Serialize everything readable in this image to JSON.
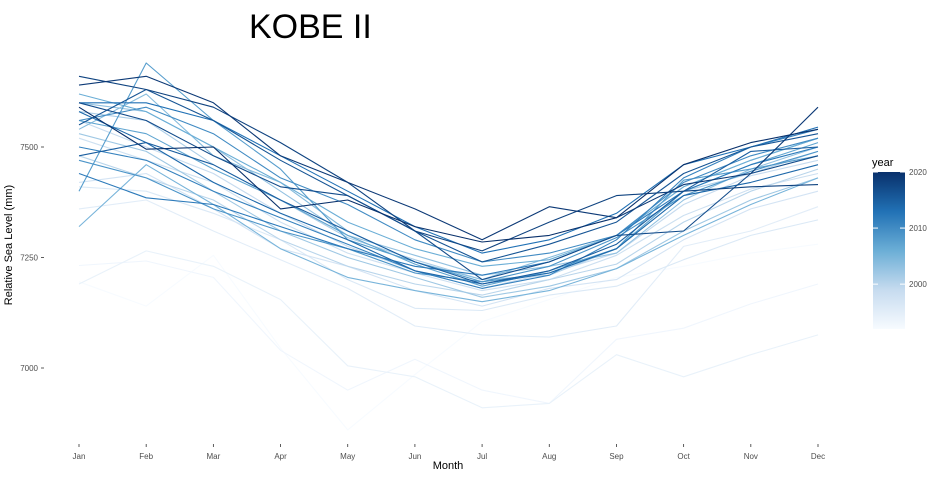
{
  "chart_data": {
    "type": "line",
    "title": "KOBE II",
    "xlabel": "Month",
    "ylabel": "Relative Sea Level (mm)",
    "categories": [
      "Jan",
      "Feb",
      "Mar",
      "Apr",
      "May",
      "Jun",
      "Jul",
      "Aug",
      "Sep",
      "Oct",
      "Nov",
      "Dec"
    ],
    "ylim": [
      6825,
      7700
    ],
    "yticks": [
      7000,
      7250,
      7500
    ],
    "grid": false,
    "legend": {
      "title": "year",
      "placement": "right",
      "type": "colorbar",
      "range": [
        1992,
        2020
      ],
      "ticks": [
        2000,
        2010,
        2020
      ],
      "color_low": "#f7fbff",
      "color_high": "#08306b"
    },
    "series": [
      {
        "year": 1992,
        "values": [
          7195,
          7140,
          7255,
          7045,
          6860,
          6985,
          7105,
          7155,
          7205,
          7230,
          7260,
          7280
        ]
      },
      {
        "year": 1993,
        "values": [
          7232,
          7242,
          7205,
          7040,
          6950,
          7020,
          6950,
          6920,
          7065,
          7090,
          7145,
          7190
        ]
      },
      {
        "year": 1994,
        "values": [
          7190,
          7265,
          7230,
          7155,
          7005,
          6980,
          6910,
          6920,
          7030,
          6980,
          7030,
          7075
        ]
      },
      {
        "year": 1995,
        "values": [
          7360,
          7380,
          7310,
          7245,
          7180,
          7095,
          7075,
          7070,
          7095,
          7275,
          7310,
          7365
        ]
      },
      {
        "year": 1996,
        "values": [
          7410,
          7400,
          7350,
          7290,
          7200,
          7135,
          7130,
          7165,
          7185,
          7245,
          7300,
          7335
        ]
      },
      {
        "year": 1997,
        "values": [
          7420,
          7440,
          7360,
          7270,
          7230,
          7175,
          7140,
          7180,
          7200,
          7290,
          7360,
          7400
        ]
      },
      {
        "year": 1998,
        "values": [
          7520,
          7470,
          7420,
          7330,
          7260,
          7215,
          7175,
          7200,
          7255,
          7345,
          7405,
          7440
        ]
      },
      {
        "year": 1999,
        "values": [
          7560,
          7500,
          7440,
          7350,
          7275,
          7220,
          7180,
          7215,
          7260,
          7370,
          7435,
          7470
        ]
      },
      {
        "year": 2000,
        "values": [
          7480,
          7430,
          7380,
          7290,
          7230,
          7190,
          7165,
          7200,
          7235,
          7330,
          7400,
          7450
        ]
      },
      {
        "year": 2001,
        "values": [
          7580,
          7560,
          7460,
          7380,
          7295,
          7245,
          7200,
          7210,
          7270,
          7400,
          7440,
          7490
        ]
      },
      {
        "year": 2002,
        "values": [
          7530,
          7490,
          7400,
          7310,
          7250,
          7205,
          7160,
          7185,
          7225,
          7310,
          7380,
          7430
        ]
      },
      {
        "year": 2003,
        "values": [
          7600,
          7580,
          7500,
          7400,
          7300,
          7255,
          7210,
          7230,
          7260,
          7380,
          7450,
          7500
        ]
      },
      {
        "year": 2004,
        "values": [
          7540,
          7620,
          7480,
          7420,
          7310,
          7240,
          7200,
          7250,
          7300,
          7410,
          7470,
          7520
        ]
      },
      {
        "year": 2005,
        "values": [
          7320,
          7460,
          7370,
          7270,
          7205,
          7175,
          7150,
          7175,
          7225,
          7300,
          7370,
          7430
        ]
      },
      {
        "year": 2006,
        "values": [
          7620,
          7580,
          7500,
          7420,
          7330,
          7270,
          7230,
          7245,
          7300,
          7410,
          7470,
          7520
        ]
      },
      {
        "year": 2007,
        "values": [
          7560,
          7530,
          7450,
          7380,
          7300,
          7235,
          7185,
          7220,
          7270,
          7400,
          7460,
          7510
        ]
      },
      {
        "year": 2008,
        "values": [
          7400,
          7690,
          7560,
          7450,
          7290,
          7240,
          7195,
          7215,
          7270,
          7425,
          7450,
          7480
        ]
      },
      {
        "year": 2009,
        "values": [
          7470,
          7430,
          7360,
          7310,
          7270,
          7215,
          7195,
          7230,
          7295,
          7390,
          7445,
          7490
        ]
      },
      {
        "year": 2010,
        "values": [
          7560,
          7590,
          7530,
          7430,
          7370,
          7290,
          7240,
          7260,
          7300,
          7420,
          7480,
          7520
        ]
      },
      {
        "year": 2011,
        "values": [
          7500,
          7470,
          7400,
          7340,
          7280,
          7220,
          7180,
          7210,
          7290,
          7430,
          7500,
          7540
        ]
      },
      {
        "year": 2012,
        "values": [
          7440,
          7385,
          7370,
          7320,
          7270,
          7230,
          7210,
          7240,
          7300,
          7400,
          7460,
          7500
        ]
      },
      {
        "year": 2013,
        "values": [
          7600,
          7600,
          7560,
          7480,
          7400,
          7320,
          7260,
          7290,
          7350,
          7460,
          7500,
          7545
        ]
      },
      {
        "year": 2014,
        "values": [
          7580,
          7510,
          7420,
          7350,
          7290,
          7220,
          7190,
          7215,
          7270,
          7390,
          7420,
          7460
        ]
      },
      {
        "year": 2015,
        "values": [
          7480,
          7510,
          7460,
          7380,
          7310,
          7240,
          7190,
          7220,
          7280,
          7400,
          7490,
          7500
        ]
      },
      {
        "year": 2016,
        "values": [
          7550,
          7630,
          7560,
          7470,
          7390,
          7310,
          7240,
          7280,
          7330,
          7440,
          7500,
          7530
        ]
      },
      {
        "year": 2017,
        "values": [
          7600,
          7560,
          7480,
          7410,
          7390,
          7310,
          7200,
          7240,
          7300,
          7310,
          7440,
          7480
        ]
      },
      {
        "year": 2018,
        "values": [
          7660,
          7630,
          7590,
          7510,
          7420,
          7310,
          7265,
          7330,
          7390,
          7400,
          7410,
          7415
        ]
      },
      {
        "year": 2019,
        "values": [
          7640,
          7660,
          7600,
          7480,
          7420,
          7360,
          7290,
          7365,
          7340,
          7415,
          7440,
          7590
        ]
      },
      {
        "year": 2020,
        "values": [
          7590,
          7495,
          7500,
          7360,
          7380,
          7320,
          7285,
          7300,
          7340,
          7460,
          7510,
          7540
        ]
      }
    ]
  }
}
